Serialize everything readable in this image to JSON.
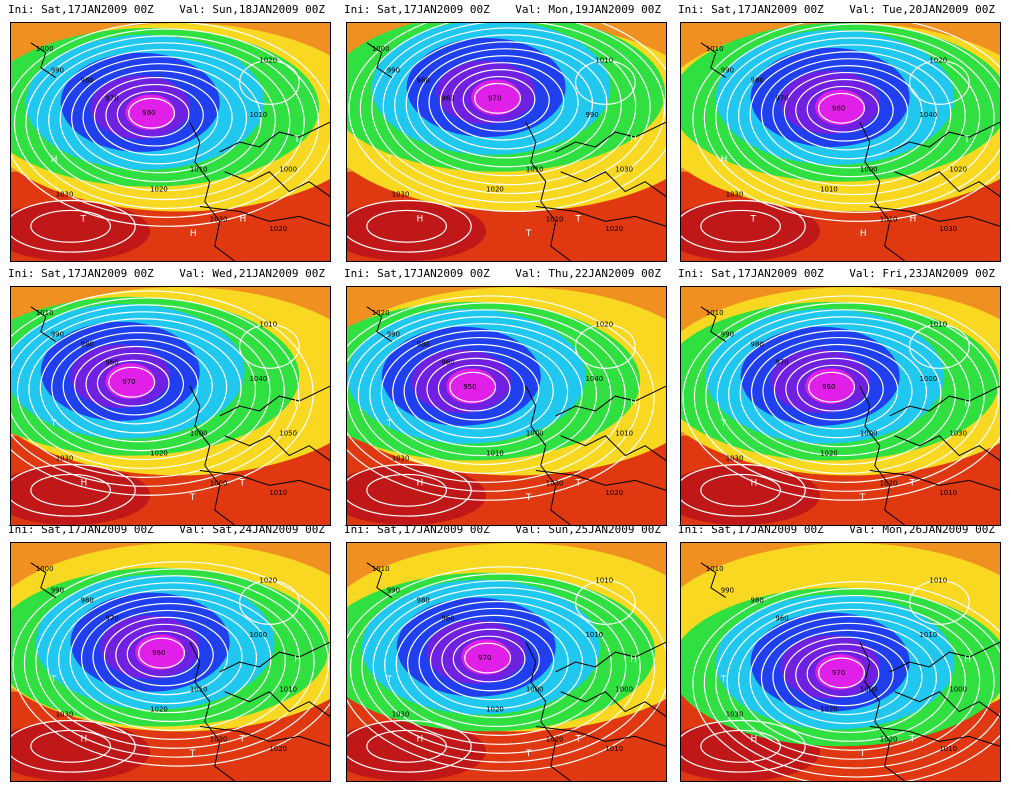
{
  "panels": [
    {
      "ini": "Ini: Sat,17JAN2009 00Z",
      "val": "Val: Sun,18JAN2009 00Z",
      "low": "960",
      "labels": [
        "1000",
        "990",
        "980",
        "970",
        "1010",
        "1020",
        "1030",
        "1020",
        "1010",
        "1000",
        "1030",
        "1020"
      ],
      "marks": [
        "H",
        "T",
        "H",
        "T",
        "H"
      ]
    },
    {
      "ini": "Ini: Sat,17JAN2009 00Z",
      "val": "Val: Mon,19JAN2009 00Z",
      "low": "970",
      "labels": [
        "1000",
        "990",
        "980",
        "960",
        "1010",
        "1020",
        "1030",
        "1010",
        "990",
        "1030",
        "1010",
        "1020"
      ],
      "marks": [
        "T",
        "H",
        "T",
        "H",
        "T"
      ]
    },
    {
      "ini": "Ini: Sat,17JAN2009 00Z",
      "val": "Val: Tue,20JAN2009 00Z",
      "low": "960",
      "labels": [
        "1010",
        "990",
        "980",
        "970",
        "1000",
        "1010",
        "1030",
        "1020",
        "1040",
        "1020",
        "1010",
        "1030"
      ],
      "marks": [
        "H",
        "T",
        "H",
        "T",
        "H"
      ]
    },
    {
      "ini": "Ini: Sat,17JAN2009 00Z",
      "val": "Val: Wed,21JAN2009 00Z",
      "low": "970",
      "labels": [
        "1010",
        "990",
        "980",
        "960",
        "1000",
        "1020",
        "1030",
        "1010",
        "1040",
        "1050",
        "1000",
        "1010"
      ],
      "marks": [
        "T",
        "H",
        "T",
        "H",
        "T"
      ]
    },
    {
      "ini": "Ini: Sat,17JAN2009 00Z",
      "val": "Val: Thu,22JAN2009 00Z",
      "low": "950",
      "labels": [
        "1020",
        "990",
        "980",
        "960",
        "1000",
        "1010",
        "1030",
        "1020",
        "1040",
        "1010",
        "1030",
        "1020"
      ],
      "marks": [
        "T",
        "H",
        "T",
        "H",
        "T"
      ]
    },
    {
      "ini": "Ini: Sat,17JAN2009 00Z",
      "val": "Val: Fri,23JAN2009 00Z",
      "low": "960",
      "labels": [
        "1010",
        "990",
        "980",
        "970",
        "1000",
        "1020",
        "1030",
        "1010",
        "1000",
        "1030",
        "1020",
        "1010"
      ],
      "marks": [
        "T",
        "H",
        "T",
        "H",
        "T"
      ]
    },
    {
      "ini": "Ini: Sat,17JAN2009 00Z",
      "val": "Val: Sat,24JAN2009 00Z",
      "low": "960",
      "labels": [
        "1000",
        "990",
        "980",
        "970",
        "1010",
        "1020",
        "1030",
        "1020",
        "1000",
        "1010",
        "1030",
        "1020"
      ],
      "marks": [
        "T",
        "H",
        "T",
        "H",
        "T"
      ]
    },
    {
      "ini": "Ini: Sat,17JAN2009 00Z",
      "val": "Val: Sun,25JAN2009 00Z",
      "low": "970",
      "labels": [
        "1010",
        "990",
        "980",
        "960",
        "1000",
        "1020",
        "1030",
        "1010",
        "1010",
        "1000",
        "1020",
        "1010"
      ],
      "marks": [
        "T",
        "H",
        "T",
        "H",
        "T"
      ]
    },
    {
      "ini": "Ini: Sat,17JAN2009 00Z",
      "val": "Val: Mon,26JAN2009 00Z",
      "low": "970",
      "labels": [
        "1010",
        "990",
        "980",
        "960",
        "1000",
        "1020",
        "1030",
        "1010",
        "1010",
        "1000",
        "1020",
        "1010"
      ],
      "marks": [
        "T",
        "H",
        "T",
        "H",
        "T"
      ]
    }
  ],
  "colors": {
    "magenta": "#e020e8",
    "violet": "#7020e0",
    "blue": "#2040f0",
    "cyan": "#20c8f0",
    "green": "#30e040",
    "yellow": "#f8d820",
    "orange": "#f09020",
    "red": "#e03810",
    "darkred": "#c01818",
    "isobar": "#ffffff",
    "coast": "#000000"
  }
}
